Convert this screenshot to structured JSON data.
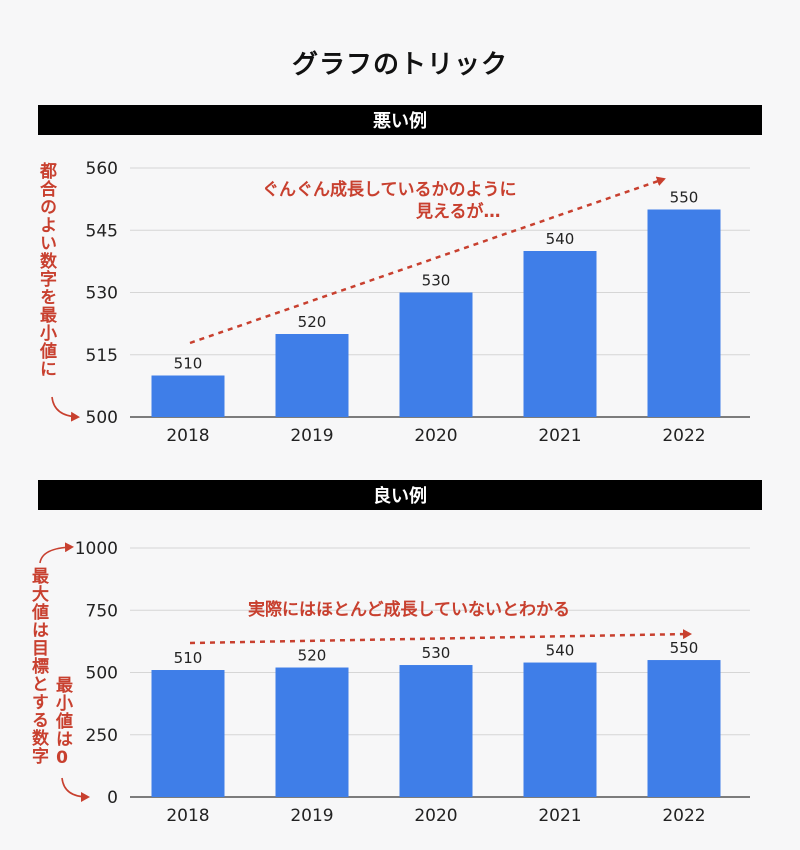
{
  "title": "グラフのトリック",
  "colors": {
    "bar": "#3f7ee8",
    "annotation": "#c8402f",
    "grid": "#d6d6d6"
  },
  "chart_data": [
    {
      "type": "bar",
      "heading": "悪い例",
      "categories": [
        "2018",
        "2019",
        "2020",
        "2021",
        "2022"
      ],
      "values": [
        510,
        520,
        530,
        540,
        550
      ],
      "ylim": [
        500,
        560
      ],
      "yticks": [
        500,
        515,
        530,
        545,
        560
      ],
      "grid": true,
      "annotations": {
        "trend": "ぐんぐん成長しているかのように",
        "trend2": "見えるが…",
        "axis_note": "都合のよい数字を最小値に"
      }
    },
    {
      "type": "bar",
      "heading": "良い例",
      "categories": [
        "2018",
        "2019",
        "2020",
        "2021",
        "2022"
      ],
      "values": [
        510,
        520,
        530,
        540,
        550
      ],
      "ylim": [
        0,
        1000
      ],
      "yticks": [
        0,
        250,
        500,
        750,
        1000
      ],
      "grid": true,
      "annotations": {
        "trend": "実際にはほとんど成長していないとわかる",
        "max_note": "最大値は目標とする数字",
        "min_note": "最小値は0"
      }
    }
  ]
}
